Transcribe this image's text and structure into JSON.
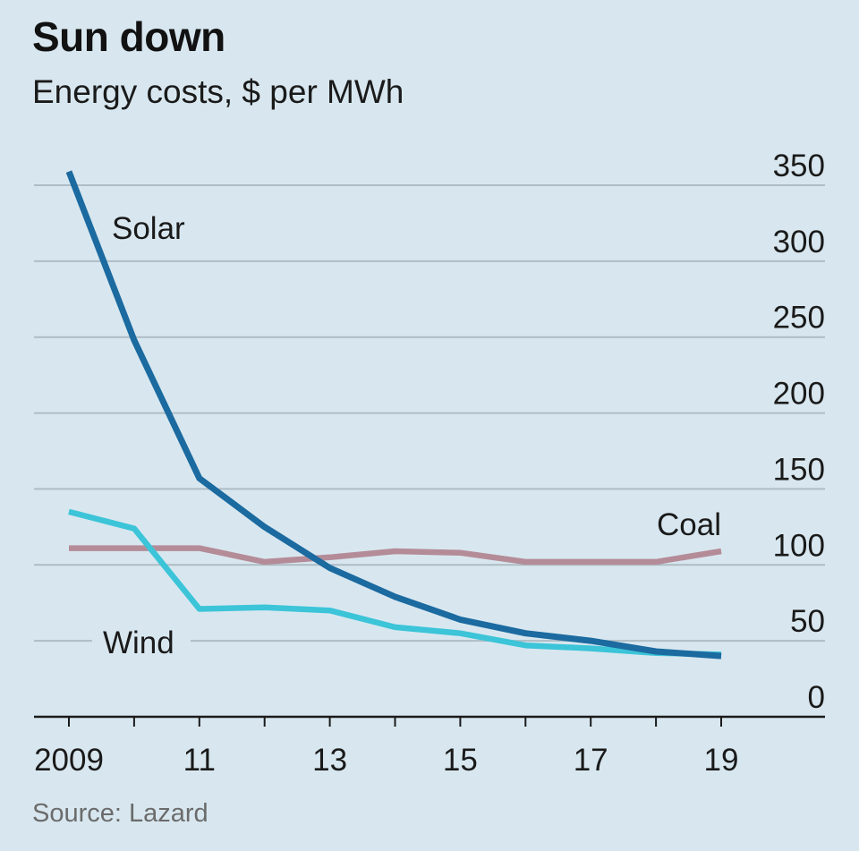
{
  "title": "Sun down",
  "subtitle": "Energy costs, $ per MWh",
  "source": "Source: Lazard",
  "chart_data": {
    "type": "line",
    "x": [
      2009,
      2010,
      2011,
      2012,
      2013,
      2014,
      2015,
      2016,
      2017,
      2018,
      2019
    ],
    "xlim": [
      2009,
      2020.5
    ],
    "ylim": [
      0,
      350
    ],
    "grid": true,
    "y_axis_position": "right",
    "x_ticks": [
      {
        "value": 2009,
        "label": "2009"
      },
      {
        "value": 2011,
        "label": "11"
      },
      {
        "value": 2013,
        "label": "13"
      },
      {
        "value": 2015,
        "label": "15"
      },
      {
        "value": 2017,
        "label": "17"
      },
      {
        "value": 2019,
        "label": "19"
      }
    ],
    "y_ticks": [
      0,
      50,
      100,
      150,
      200,
      250,
      300,
      350
    ],
    "series": [
      {
        "name": "Solar",
        "color": "#1b6aa0",
        "values": [
          359,
          248,
          157,
          125,
          98,
          79,
          64,
          55,
          50,
          43,
          40
        ]
      },
      {
        "name": "Wind",
        "color": "#3cc4d8",
        "values": [
          135,
          124,
          71,
          72,
          70,
          59,
          55,
          47,
          45,
          42,
          41
        ]
      },
      {
        "name": "Coal",
        "color": "#b48c98",
        "values": [
          111,
          111,
          111,
          102,
          105,
          109,
          108,
          102,
          102,
          102,
          109
        ]
      }
    ]
  }
}
